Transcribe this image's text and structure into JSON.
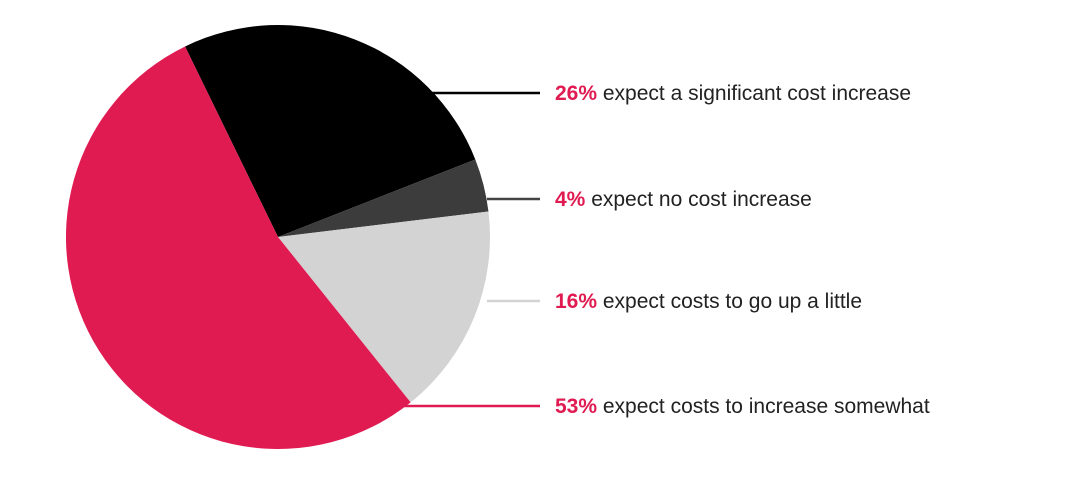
{
  "chart_data": {
    "type": "pie",
    "title": "",
    "accent_color": "#e01b52",
    "slices": [
      {
        "percent": "26%",
        "label": "expect a significant cost increase",
        "value": 26,
        "color": "#000000",
        "line_color": "#000000"
      },
      {
        "percent": "4%",
        "label": "expect no cost increase",
        "value": 4,
        "color": "#3c3c3c",
        "line_color": "#444444"
      },
      {
        "percent": "16%",
        "label": "expect costs to go up a little",
        "value": 16,
        "color": "#d3d3d3",
        "line_color": "#d3d3d3"
      },
      {
        "percent": "53%",
        "label": "expect costs to increase somewhat",
        "value": 53,
        "color": "#e01b52",
        "line_color": "#e01b52"
      }
    ]
  }
}
